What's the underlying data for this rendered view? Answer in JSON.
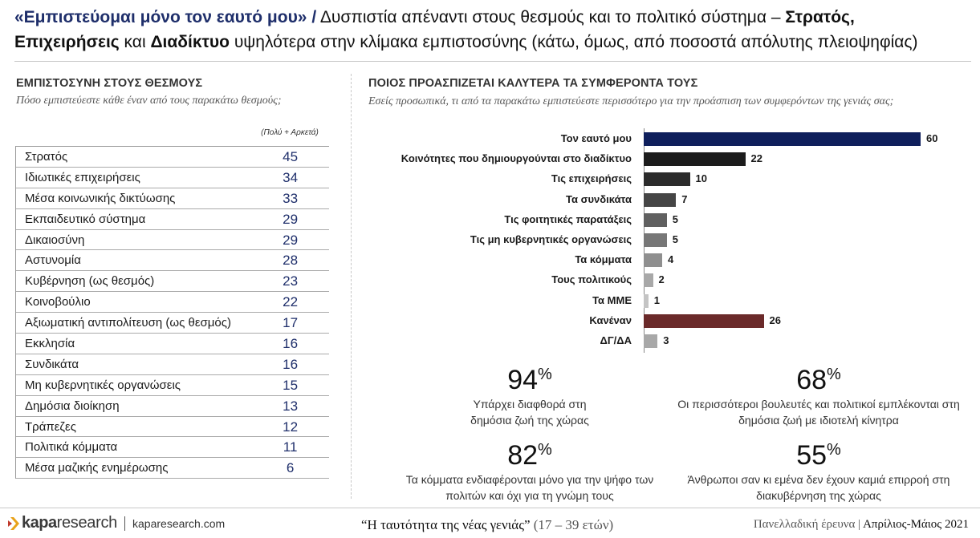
{
  "headline": {
    "quote": "«Εμπιστεύομαι μόνο τον εαυτό μου»",
    "slash": "/",
    "part1": " Δυσπιστία απέναντι στους θεσμούς και το πολιτικό σύστημα – ",
    "bold1": "Στρατός,",
    "bold2": "Επιχειρήσεις",
    "part2": " και ",
    "bold3": "Διαδίκτυο",
    "part3": " υψηλότερα στην κλίμακα εμπιστοσύνης (κάτω, όμως, από ποσοστά απόλυτης πλειοψηφίας)"
  },
  "left": {
    "title": "ΕΜΠΙΣΤΟΣΥΝΗ ΣΤΟΥΣ ΘΕΣΜΟΥΣ",
    "subtitle": "Πόσο εμπιστεύεστε κάθε έναν από τους παρακάτω θεσμούς;",
    "column_note": "(Πολύ + Αρκετά)",
    "rows": [
      {
        "label": "Στρατός",
        "value": "45"
      },
      {
        "label": "Ιδιωτικές επιχειρήσεις",
        "value": "34"
      },
      {
        "label": "Μέσα κοινωνικής δικτύωσης",
        "value": "33"
      },
      {
        "label": "Εκπαιδευτικό σύστημα",
        "value": "29"
      },
      {
        "label": "Δικαιοσύνη",
        "value": "29"
      },
      {
        "label": "Αστυνομία",
        "value": "28"
      },
      {
        "label": "Κυβέρνηση (ως θεσμός)",
        "value": "23"
      },
      {
        "label": "Κοινοβούλιο",
        "value": "22"
      },
      {
        "label": "Αξιωματική αντιπολίτευση (ως θεσμός)",
        "value": "17"
      },
      {
        "label": "Εκκλησία",
        "value": "16"
      },
      {
        "label": "Συνδικάτα",
        "value": "16"
      },
      {
        "label": "Μη κυβερνητικές οργανώσεις",
        "value": "15"
      },
      {
        "label": "Δημόσια διοίκηση",
        "value": "13"
      },
      {
        "label": "Τράπεζες",
        "value": "12"
      },
      {
        "label": "Πολιτικά κόμματα",
        "value": "11"
      },
      {
        "label": "Μέσα μαζικής ενημέρωσης",
        "value": "6"
      }
    ]
  },
  "right": {
    "title": "ΠΟΙΟΣ ΠΡΟΑΣΠΙΖΕΤΑΙ ΚΑΛΥΤΕΡΑ ΤΑ ΣΥΜΦΕΡΟΝΤΑ ΤΟΥΣ",
    "subtitle": "Εσείς προσωπικά, τι από τα παρακάτω εμπιστεύεστε περισσότερο για την προάσπιση των συμφερόντων της γενιάς σας;"
  },
  "chart_data": {
    "type": "bar",
    "orientation": "horizontal",
    "categories": [
      "Τον εαυτό μου",
      "Κοινότητες που δημιουργούνται στο διαδίκτυο",
      "Τις επιχειρήσεις",
      "Τα συνδικάτα",
      "Τις φοιτητικές παρατάξεις",
      "Τις μη κυβερνητικές οργανώσεις",
      "Τα κόμματα",
      "Τους πολιτικούς",
      "Τα ΜΜΕ",
      "Κανέναν",
      "ΔΓ/ΔΑ"
    ],
    "values": [
      60,
      22,
      10,
      7,
      5,
      5,
      4,
      2,
      1,
      26,
      3
    ],
    "colors": [
      "#0f1f5c",
      "#1c1c1c",
      "#2b2b2b",
      "#454545",
      "#606060",
      "#777777",
      "#8f8f8f",
      "#a8a8a8",
      "#c4c4c4",
      "#6b2a2a",
      "#a8a8a8"
    ],
    "xlim": [
      0,
      60
    ],
    "grid": false,
    "legend": "none"
  },
  "stats": [
    {
      "num": "94",
      "pct": "%",
      "text": "Υπάρχει διαφθορά στη δημόσια ζωή της χώρας"
    },
    {
      "num": "68",
      "pct": "%",
      "text": "Οι περισσότεροι βουλευτές και πολιτικοί εμπλέκονται στη δημόσια ζωή με ιδιοτελή κίνητρα"
    },
    {
      "num": "82",
      "pct": "%",
      "text": "Τα κόμματα ενδιαφέρονται μόνο για την ψήφο των πολιτών και όχι για τη γνώμη τους"
    },
    {
      "num": "55",
      "pct": "%",
      "text": "Άνθρωποι σαν κι εμένα δεν έχουν καμιά επιρροή στη διακυβέρνηση της χώρας"
    }
  ],
  "footer": {
    "logo_kapa": "kapa",
    "logo_research": "research",
    "site": "kaparesearch.com",
    "survey_title": "“Η ταυτότητα της νέας γενιάς”",
    "age_range": " (17 – 39 ετών)",
    "survey_type": "Πανελλαδική έρευνα | ",
    "survey_date": "Απρίλιος-Μάιος 2021"
  },
  "colors": {
    "brand_navy": "#1f2f6b",
    "accent_maroon": "#6b2a2a"
  }
}
